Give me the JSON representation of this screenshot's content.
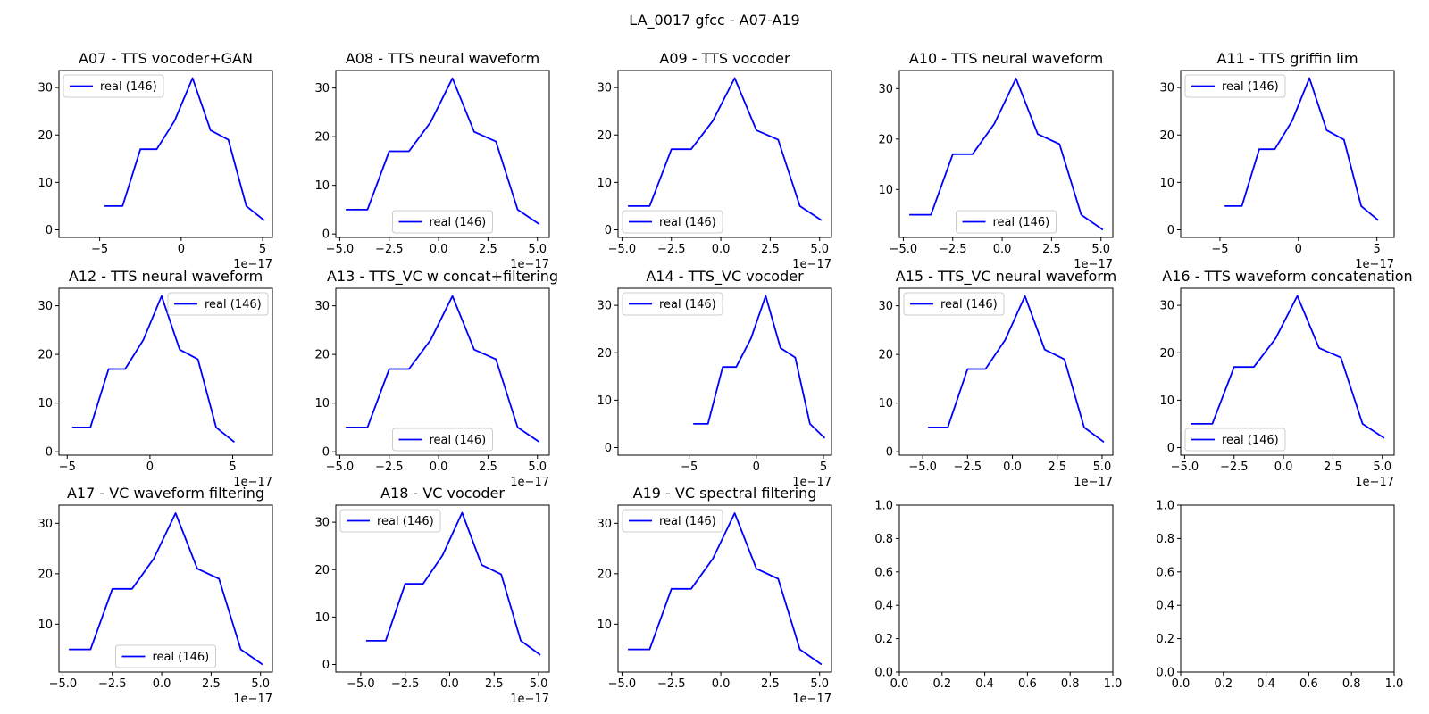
{
  "figure": {
    "title": "LA_0017 gfcc - A07-A19",
    "line_color": "#0000ff"
  },
  "chart_data": [
    {
      "type": "line",
      "title": "A07 - TTS vocoder+GAN",
      "xlim": [
        -7.5,
        5.6
      ],
      "ylim": [
        -1.6,
        33.6
      ],
      "xticks": [
        -5,
        0,
        5
      ],
      "xtick_labels": [
        "−5",
        "0",
        "5"
      ],
      "yticks": [
        0,
        10,
        20,
        30
      ],
      "ytick_labels": [
        "0",
        "10",
        "20",
        "30"
      ],
      "x_exponent": "1e−17",
      "legend": {
        "label": "real (146)",
        "loc": "upper left"
      },
      "series": [
        {
          "name": "real (146)",
          "x": [
            -4.7,
            -3.6,
            -2.5,
            -1.5,
            -0.4,
            0.7,
            1.8,
            2.9,
            4.0,
            5.1
          ],
          "y": [
            5,
            5,
            17,
            17,
            23,
            32,
            21,
            19,
            5,
            2
          ]
        }
      ]
    },
    {
      "type": "line",
      "title": "A08 - TTS neural waveform",
      "xlim": [
        -5.2,
        5.6
      ],
      "ylim": [
        -0.7,
        33.6
      ],
      "xticks": [
        -5,
        -2.5,
        0,
        2.5,
        5
      ],
      "xtick_labels": [
        "−5.0",
        "−2.5",
        "0.0",
        "2.5",
        "5.0"
      ],
      "yticks": [
        0,
        10,
        20,
        30
      ],
      "ytick_labels": [
        "0",
        "10",
        "20",
        "30"
      ],
      "x_exponent": "1e−17",
      "legend": {
        "label": "real (146)",
        "loc": "lower center"
      },
      "series": [
        {
          "name": "real (146)",
          "x": [
            -4.7,
            -3.6,
            -2.5,
            -1.5,
            -0.4,
            0.7,
            1.8,
            2.9,
            4.0,
            5.1
          ],
          "y": [
            5,
            5,
            17,
            17,
            23,
            32,
            21,
            19,
            5,
            2
          ]
        }
      ]
    },
    {
      "type": "line",
      "title": "A09 - TTS vocoder",
      "xlim": [
        -5.2,
        5.6
      ],
      "ylim": [
        -1.6,
        33.6
      ],
      "xticks": [
        -5,
        -2.5,
        0,
        2.5,
        5
      ],
      "xtick_labels": [
        "−5.0",
        "−2.5",
        "0.0",
        "2.5",
        "5.0"
      ],
      "yticks": [
        0,
        10,
        20,
        30
      ],
      "ytick_labels": [
        "0",
        "10",
        "20",
        "30"
      ],
      "x_exponent": "1e−17",
      "legend": {
        "label": "real (146)",
        "loc": "lower left"
      },
      "series": [
        {
          "name": "real (146)",
          "x": [
            -4.7,
            -3.6,
            -2.5,
            -1.5,
            -0.4,
            0.7,
            1.8,
            2.9,
            4.0,
            5.1
          ],
          "y": [
            5,
            5,
            17,
            17,
            23,
            32,
            21,
            19,
            5,
            2
          ]
        }
      ]
    },
    {
      "type": "line",
      "title": "A10 - TTS neural waveform",
      "xlim": [
        -5.2,
        5.6
      ],
      "ylim": [
        0.5,
        33.6
      ],
      "xticks": [
        -5,
        -2.5,
        0,
        2.5,
        5
      ],
      "xtick_labels": [
        "−5.0",
        "−2.5",
        "0.0",
        "2.5",
        "5.0"
      ],
      "yticks": [
        10,
        20,
        30
      ],
      "ytick_labels": [
        "10",
        "20",
        "30"
      ],
      "x_exponent": "1e−17",
      "legend": {
        "label": "real (146)",
        "loc": "lower center"
      },
      "series": [
        {
          "name": "real (146)",
          "x": [
            -4.7,
            -3.6,
            -2.5,
            -1.5,
            -0.4,
            0.7,
            1.8,
            2.9,
            4.0,
            5.1
          ],
          "y": [
            5,
            5,
            17,
            17,
            23,
            32,
            21,
            19,
            5,
            2
          ]
        }
      ]
    },
    {
      "type": "line",
      "title": "A11 - TTS griffin lim",
      "xlim": [
        -7.5,
        6.1
      ],
      "ylim": [
        -1.6,
        33.6
      ],
      "xticks": [
        -5,
        0,
        5
      ],
      "xtick_labels": [
        "−5",
        "0",
        "5"
      ],
      "yticks": [
        0,
        10,
        20,
        30
      ],
      "ytick_labels": [
        "0",
        "10",
        "20",
        "30"
      ],
      "x_exponent": "1e−17",
      "legend": {
        "label": "real (146)",
        "loc": "upper left"
      },
      "series": [
        {
          "name": "real (146)",
          "x": [
            -4.7,
            -3.6,
            -2.5,
            -1.5,
            -0.4,
            0.7,
            1.8,
            2.9,
            4.0,
            5.1
          ],
          "y": [
            5,
            5,
            17,
            17,
            23,
            32,
            21,
            19,
            5,
            2
          ]
        }
      ]
    },
    {
      "type": "line",
      "title": "A12 - TTS neural waveform",
      "xlim": [
        -5.5,
        7.4
      ],
      "ylim": [
        -0.7,
        33.6
      ],
      "xticks": [
        -5,
        0,
        5
      ],
      "xtick_labels": [
        "−5",
        "0",
        "5"
      ],
      "yticks": [
        0,
        10,
        20,
        30
      ],
      "ytick_labels": [
        "0",
        "10",
        "20",
        "30"
      ],
      "x_exponent": "1e−17",
      "legend": {
        "label": "real (146)",
        "loc": "upper right"
      },
      "series": [
        {
          "name": "real (146)",
          "x": [
            -4.7,
            -3.6,
            -2.5,
            -1.5,
            -0.4,
            0.7,
            1.8,
            2.9,
            4.0,
            5.1
          ],
          "y": [
            5,
            5,
            17,
            17,
            23,
            32,
            21,
            19,
            5,
            2
          ]
        }
      ]
    },
    {
      "type": "line",
      "title": "A13 - TTS_VC w concat+filtering",
      "xlim": [
        -5.2,
        5.6
      ],
      "ylim": [
        -0.7,
        33.6
      ],
      "xticks": [
        -5,
        -2.5,
        0,
        2.5,
        5
      ],
      "xtick_labels": [
        "−5.0",
        "−2.5",
        "0.0",
        "2.5",
        "5.0"
      ],
      "yticks": [
        0,
        10,
        20,
        30
      ],
      "ytick_labels": [
        "0",
        "10",
        "20",
        "30"
      ],
      "x_exponent": "1e−17",
      "legend": {
        "label": "real (146)",
        "loc": "lower center"
      },
      "series": [
        {
          "name": "real (146)",
          "x": [
            -4.7,
            -3.6,
            -2.5,
            -1.5,
            -0.4,
            0.7,
            1.8,
            2.9,
            4.0,
            5.1
          ],
          "y": [
            5,
            5,
            17,
            17,
            23,
            32,
            21,
            19,
            5,
            2
          ]
        }
      ]
    },
    {
      "type": "line",
      "title": "A14 - TTS_VC vocoder",
      "xlim": [
        -10.3,
        5.6
      ],
      "ylim": [
        -1.6,
        33.6
      ],
      "xticks": [
        -5,
        0,
        5
      ],
      "xtick_labels": [
        "−5",
        "0",
        "5"
      ],
      "yticks": [
        0,
        10,
        20,
        30
      ],
      "ytick_labels": [
        "0",
        "10",
        "20",
        "30"
      ],
      "x_exponent": "1e−17",
      "legend": {
        "label": "real (146)",
        "loc": "upper left"
      },
      "series": [
        {
          "name": "real (146)",
          "x": [
            -4.7,
            -3.6,
            -2.5,
            -1.5,
            -0.4,
            0.7,
            1.8,
            2.9,
            4.0,
            5.1
          ],
          "y": [
            5,
            5,
            17,
            17,
            23,
            32,
            21,
            19,
            5,
            2
          ]
        }
      ]
    },
    {
      "type": "line",
      "title": "A15 - TTS_VC neural waveform",
      "xlim": [
        -6.3,
        5.6
      ],
      "ylim": [
        -0.7,
        33.6
      ],
      "xticks": [
        -5,
        -2.5,
        0,
        2.5,
        5
      ],
      "xtick_labels": [
        "−5.0",
        "−2.5",
        "0.0",
        "2.5",
        "5.0"
      ],
      "yticks": [
        0,
        10,
        20,
        30
      ],
      "ytick_labels": [
        "0",
        "10",
        "20",
        "30"
      ],
      "x_exponent": "1e−17",
      "legend": {
        "label": "real (146)",
        "loc": "upper left"
      },
      "series": [
        {
          "name": "real (146)",
          "x": [
            -4.7,
            -3.6,
            -2.5,
            -1.5,
            -0.4,
            0.7,
            1.8,
            2.9,
            4.0,
            5.1
          ],
          "y": [
            5,
            5,
            17,
            17,
            23,
            32,
            21,
            19,
            5,
            2
          ]
        }
      ]
    },
    {
      "type": "line",
      "title": "A16 - TTS waveform concatenation",
      "xlim": [
        -5.2,
        5.6
      ],
      "ylim": [
        -1.6,
        33.6
      ],
      "xticks": [
        -5,
        -2.5,
        0,
        2.5,
        5
      ],
      "xtick_labels": [
        "−5.0",
        "−2.5",
        "0.0",
        "2.5",
        "5.0"
      ],
      "yticks": [
        0,
        10,
        20,
        30
      ],
      "ytick_labels": [
        "0",
        "10",
        "20",
        "30"
      ],
      "x_exponent": "1e−17",
      "legend": {
        "label": "real (146)",
        "loc": "lower left"
      },
      "series": [
        {
          "name": "real (146)",
          "x": [
            -4.7,
            -3.6,
            -2.5,
            -1.5,
            -0.4,
            0.7,
            1.8,
            2.9,
            4.0,
            5.1
          ],
          "y": [
            5,
            5,
            17,
            17,
            23,
            32,
            21,
            19,
            5,
            2
          ]
        }
      ]
    },
    {
      "type": "line",
      "title": "A17 - VC waveform filtering",
      "xlim": [
        -5.2,
        5.6
      ],
      "ylim": [
        0.5,
        33.6
      ],
      "xticks": [
        -5,
        -2.5,
        0,
        2.5,
        5
      ],
      "xtick_labels": [
        "−5.0",
        "−2.5",
        "0.0",
        "2.5",
        "5.0"
      ],
      "yticks": [
        10,
        20,
        30
      ],
      "ytick_labels": [
        "10",
        "20",
        "30"
      ],
      "x_exponent": "1e−17",
      "legend": {
        "label": "real (146)",
        "loc": "lower center"
      },
      "series": [
        {
          "name": "real (146)",
          "x": [
            -4.7,
            -3.6,
            -2.5,
            -1.5,
            -0.4,
            0.7,
            1.8,
            2.9,
            4.0,
            5.1
          ],
          "y": [
            5,
            5,
            17,
            17,
            23,
            32,
            21,
            19,
            5,
            2
          ]
        }
      ]
    },
    {
      "type": "line",
      "title": "A18 - VC vocoder",
      "xlim": [
        -6.4,
        5.6
      ],
      "ylim": [
        -1.6,
        33.6
      ],
      "xticks": [
        -5,
        -2.5,
        0,
        2.5,
        5
      ],
      "xtick_labels": [
        "−5.0",
        "−2.5",
        "0.0",
        "2.5",
        "5.0"
      ],
      "yticks": [
        0,
        10,
        20,
        30
      ],
      "ytick_labels": [
        "0",
        "10",
        "20",
        "30"
      ],
      "x_exponent": "1e−17",
      "legend": {
        "label": "real (146)",
        "loc": "upper left"
      },
      "series": [
        {
          "name": "real (146)",
          "x": [
            -4.7,
            -3.6,
            -2.5,
            -1.5,
            -0.4,
            0.7,
            1.8,
            2.9,
            4.0,
            5.1
          ],
          "y": [
            5,
            5,
            17,
            17,
            23,
            32,
            21,
            19,
            5,
            2
          ]
        }
      ]
    },
    {
      "type": "line",
      "title": "A19 - VC spectral filtering",
      "xlim": [
        -5.2,
        5.6
      ],
      "ylim": [
        0.5,
        33.6
      ],
      "xticks": [
        -5,
        -2.5,
        0,
        2.5,
        5
      ],
      "xtick_labels": [
        "−5.0",
        "−2.5",
        "0.0",
        "2.5",
        "5.0"
      ],
      "yticks": [
        10,
        20,
        30
      ],
      "ytick_labels": [
        "10",
        "20",
        "30"
      ],
      "x_exponent": "1e−17",
      "legend": {
        "label": "real (146)",
        "loc": "upper left"
      },
      "series": [
        {
          "name": "real (146)",
          "x": [
            -4.7,
            -3.6,
            -2.5,
            -1.5,
            -0.4,
            0.7,
            1.8,
            2.9,
            4.0,
            5.1
          ],
          "y": [
            5,
            5,
            17,
            17,
            23,
            32,
            21,
            19,
            5,
            2
          ]
        }
      ]
    },
    {
      "type": "line",
      "title": "",
      "xlim": [
        0,
        1
      ],
      "ylim": [
        0,
        1
      ],
      "xticks": [
        0,
        0.2,
        0.4,
        0.6,
        0.8,
        1.0
      ],
      "xtick_labels": [
        "0.0",
        "0.2",
        "0.4",
        "0.6",
        "0.8",
        "1.0"
      ],
      "yticks": [
        0,
        0.2,
        0.4,
        0.6,
        0.8,
        1.0
      ],
      "ytick_labels": [
        "0.0",
        "0.2",
        "0.4",
        "0.6",
        "0.8",
        "1.0"
      ],
      "series": []
    },
    {
      "type": "line",
      "title": "",
      "xlim": [
        0,
        1
      ],
      "ylim": [
        0,
        1
      ],
      "xticks": [
        0,
        0.2,
        0.4,
        0.6,
        0.8,
        1.0
      ],
      "xtick_labels": [
        "0.0",
        "0.2",
        "0.4",
        "0.6",
        "0.8",
        "1.0"
      ],
      "yticks": [
        0,
        0.2,
        0.4,
        0.6,
        0.8,
        1.0
      ],
      "ytick_labels": [
        "0.0",
        "0.2",
        "0.4",
        "0.6",
        "0.8",
        "1.0"
      ],
      "series": []
    }
  ]
}
